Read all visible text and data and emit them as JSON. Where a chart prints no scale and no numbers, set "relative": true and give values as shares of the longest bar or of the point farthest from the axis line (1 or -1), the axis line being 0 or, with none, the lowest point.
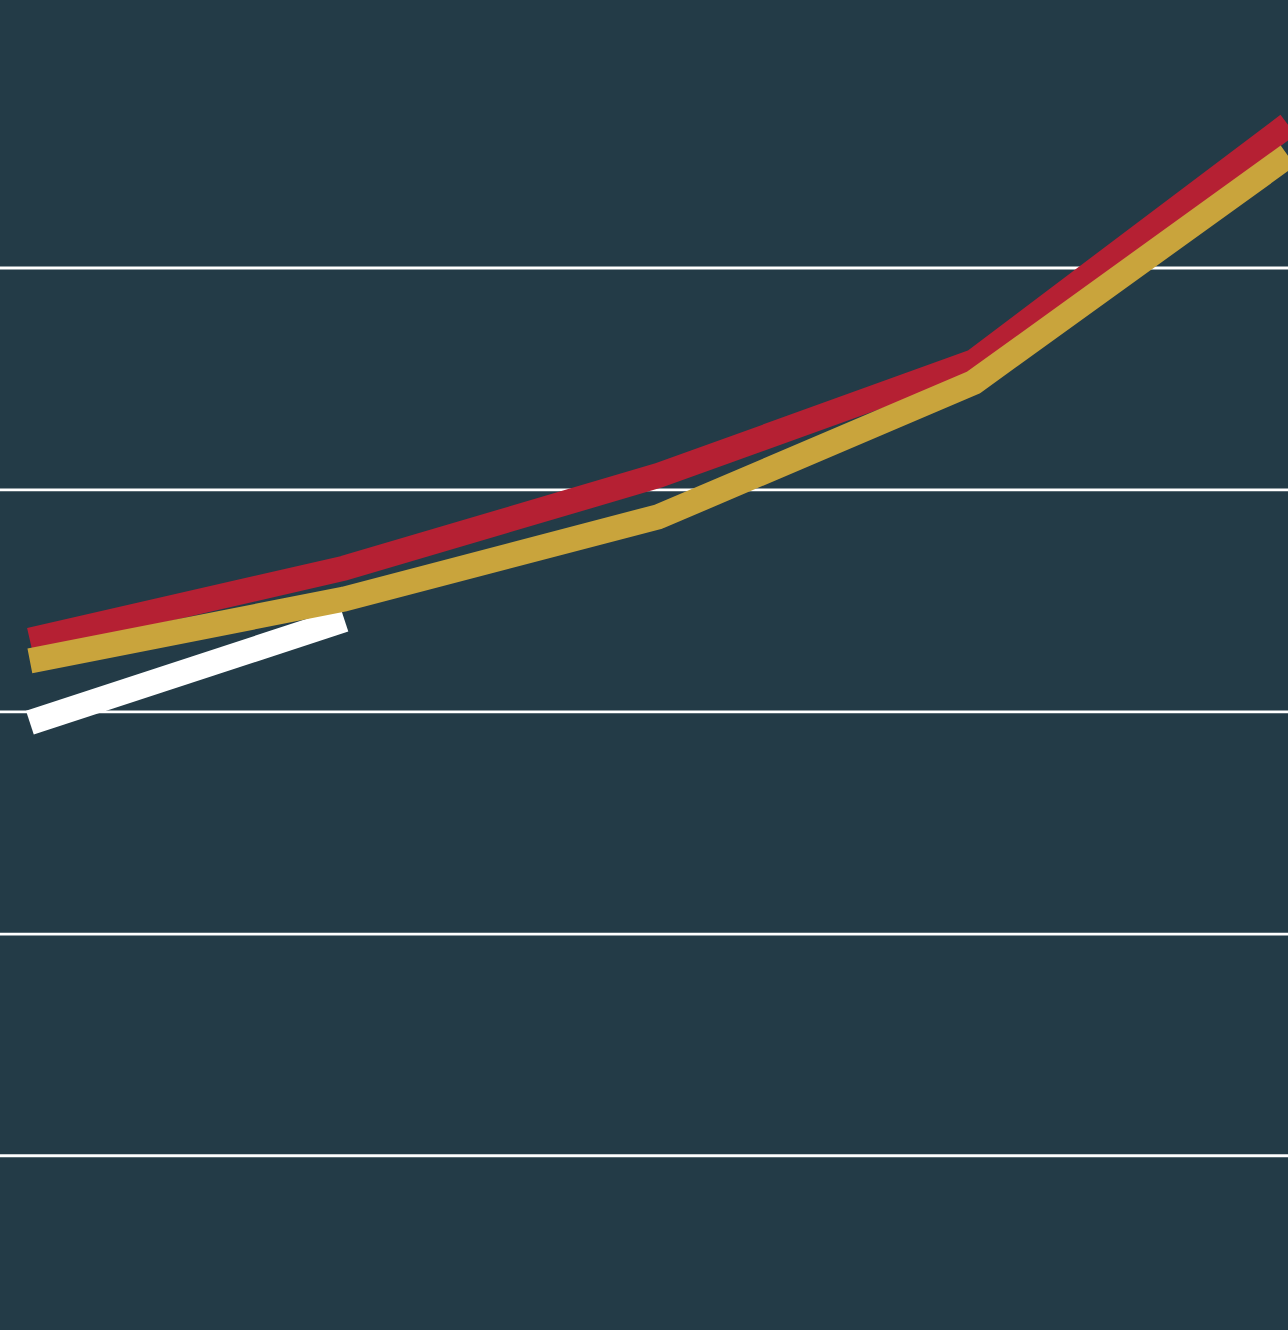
{
  "chart_data": {
    "type": "line",
    "relative": true,
    "grid": "y",
    "legend": false,
    "marker": "none",
    "line_style": "solid",
    "categories": [
      null,
      null,
      null,
      null,
      null
    ],
    "series": [
      {
        "color": "#ffffff",
        "values": [
          0.42,
          0.52,
          null,
          null,
          null
        ]
      },
      {
        "color": "#b52033",
        "values": [
          0.5,
          0.57,
          0.66,
          0.77,
          1.0
        ]
      },
      {
        "color": "#c9a43c",
        "values": [
          0.48,
          0.54,
          0.62,
          0.75,
          0.97
        ]
      }
    ]
  }
}
